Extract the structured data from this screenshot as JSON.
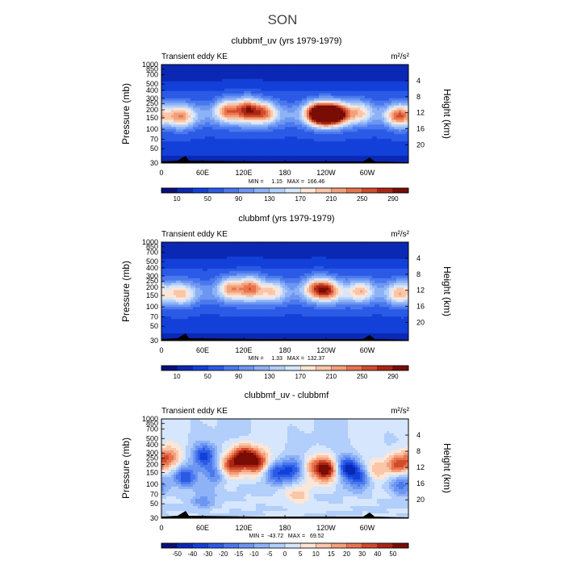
{
  "figure_title": "SON",
  "chart_data": [
    {
      "type": "heatmap",
      "title": "clubbmf_uv (yrs 1979-1979)",
      "subtitle_left": "Transient eddy KE",
      "units": "m²/s²",
      "ylabel": "Pressure (mb)",
      "ylabel_right": "Height (km)",
      "pressure_ticks": [
        "30",
        "50",
        "70",
        "100",
        "150",
        "200",
        "250",
        "300",
        "400",
        "500",
        "700",
        "850",
        "1000"
      ],
      "height_ticks": [
        "20",
        "16",
        "12",
        "8",
        "4"
      ],
      "lon_ticks": [
        "0",
        "60E",
        "120E",
        "180",
        "120W",
        "60W"
      ],
      "stats": "MIN =     1.15   MAX =  166.46",
      "colorbar_labels": [
        "10",
        "50",
        "90",
        "130",
        "170",
        "210",
        "250",
        "290"
      ],
      "colorbar_colors": [
        "#08107a",
        "#0a28b4",
        "#1240d8",
        "#2a5ae6",
        "#4a78ee",
        "#6c96f2",
        "#8eb2f6",
        "#b2cefa",
        "#d6e6fc",
        "#fde6d6",
        "#f9c6aa",
        "#f2a07c",
        "#e8744e",
        "#d24a2c",
        "#aa2614",
        "#7a0c06"
      ],
      "field": {
        "mode": "uv",
        "background": 0.18,
        "jet_level": 0.38,
        "blobs": [
          {
            "lon": 30,
            "p": 200,
            "amp": 0.25
          },
          {
            "lon": 95,
            "p": 150,
            "amp": 0.38
          },
          {
            "lon": 125,
            "p": 140,
            "amp": 0.42
          },
          {
            "lon": 150,
            "p": 160,
            "amp": 0.3
          },
          {
            "lon": 225,
            "p": 170,
            "amp": 0.52
          },
          {
            "lon": 240,
            "p": 180,
            "amp": 0.62
          },
          {
            "lon": 258,
            "p": 170,
            "amp": 0.45
          },
          {
            "lon": 290,
            "p": 160,
            "amp": 0.25
          },
          {
            "lon": 345,
            "p": 190,
            "amp": 0.35
          }
        ]
      }
    },
    {
      "type": "heatmap",
      "title": "clubbmf (yrs 1979-1979)",
      "subtitle_left": "Transient eddy KE",
      "units": "m²/s²",
      "ylabel": "Pressure (mb)",
      "ylabel_right": "Height (km)",
      "pressure_ticks": [
        "30",
        "50",
        "70",
        "100",
        "150",
        "200",
        "250",
        "300",
        "400",
        "500",
        "700",
        "850",
        "1000"
      ],
      "height_ticks": [
        "20",
        "16",
        "12",
        "8",
        "4"
      ],
      "lon_ticks": [
        "0",
        "60E",
        "120E",
        "180",
        "120W",
        "60W"
      ],
      "stats": "MIN =     1.33   MAX =  132.37",
      "colorbar_labels": [
        "10",
        "50",
        "90",
        "130",
        "170",
        "210",
        "250",
        "290"
      ],
      "colorbar_colors": [
        "#08107a",
        "#0a28b4",
        "#1240d8",
        "#2a5ae6",
        "#4a78ee",
        "#6c96f2",
        "#8eb2f6",
        "#b2cefa",
        "#d6e6fc",
        "#fde6d6",
        "#f9c6aa",
        "#f2a07c",
        "#e8744e",
        "#d24a2c",
        "#aa2614",
        "#7a0c06"
      ],
      "field": {
        "mode": "uv",
        "background": 0.18,
        "jet_level": 0.34,
        "blobs": [
          {
            "lon": 30,
            "p": 200,
            "amp": 0.2
          },
          {
            "lon": 100,
            "p": 150,
            "amp": 0.32
          },
          {
            "lon": 130,
            "p": 140,
            "amp": 0.34
          },
          {
            "lon": 165,
            "p": 170,
            "amp": 0.22
          },
          {
            "lon": 222,
            "p": 150,
            "amp": 0.3
          },
          {
            "lon": 240,
            "p": 160,
            "amp": 0.38
          },
          {
            "lon": 292,
            "p": 170,
            "amp": 0.3
          },
          {
            "lon": 345,
            "p": 190,
            "amp": 0.24
          }
        ]
      }
    },
    {
      "type": "heatmap",
      "title": "clubbmf_uv - clubbmf",
      "subtitle_left": "Transient eddy KE",
      "units": "m²/s²",
      "ylabel": "Pressure (mb)",
      "ylabel_right": "Height (km)",
      "pressure_ticks": [
        "30",
        "50",
        "70",
        "100",
        "150",
        "200",
        "250",
        "300",
        "400",
        "500",
        "700",
        "850",
        "1000"
      ],
      "height_ticks": [
        "20",
        "16",
        "12",
        "8",
        "4"
      ],
      "lon_ticks": [
        "0",
        "60E",
        "120E",
        "180",
        "120W",
        "60W"
      ],
      "stats": "MIN =  -43.72   MAX =   69.52",
      "colorbar_labels": [
        "-50",
        "-40",
        "-30",
        "-20",
        "-15",
        "-10",
        "-5",
        "0",
        "5",
        "10",
        "15",
        "20",
        "30",
        "40",
        "50"
      ],
      "colorbar_colors": [
        "#08107a",
        "#0a28b4",
        "#1240d8",
        "#2a5ae6",
        "#4a78ee",
        "#6c96f2",
        "#8eb2f6",
        "#b2cefa",
        "#d6e6fc",
        "#fde6d6",
        "#f9c6aa",
        "#f2a07c",
        "#e8744e",
        "#d24a2c",
        "#aa2614",
        "#7a0c06"
      ],
      "field": {
        "mode": "diff",
        "blobs": [
          {
            "lon": 10,
            "p": 120,
            "amp": 0.28
          },
          {
            "lon": 35,
            "p": 230,
            "amp": -0.28
          },
          {
            "lon": 62,
            "p": 110,
            "amp": -0.32
          },
          {
            "lon": 78,
            "p": 220,
            "amp": -0.22
          },
          {
            "lon": 100,
            "p": 160,
            "amp": 0.34
          },
          {
            "lon": 120,
            "p": 110,
            "amp": 0.45
          },
          {
            "lon": 140,
            "p": 140,
            "amp": 0.4
          },
          {
            "lon": 165,
            "p": 200,
            "amp": -0.25
          },
          {
            "lon": 190,
            "p": 180,
            "amp": -0.3
          },
          {
            "lon": 220,
            "p": 160,
            "amp": 0.2
          },
          {
            "lon": 240,
            "p": 180,
            "amp": 0.5
          },
          {
            "lon": 270,
            "p": 170,
            "amp": -0.42
          },
          {
            "lon": 290,
            "p": 240,
            "amp": -0.3
          },
          {
            "lon": 310,
            "p": 200,
            "amp": 0.22
          },
          {
            "lon": 345,
            "p": 150,
            "amp": 0.38
          },
          {
            "lon": 350,
            "p": 300,
            "amp": -0.25
          },
          {
            "lon": 200,
            "p": 450,
            "amp": 0.15
          },
          {
            "lon": 60,
            "p": 500,
            "amp": -0.15
          }
        ]
      }
    }
  ]
}
